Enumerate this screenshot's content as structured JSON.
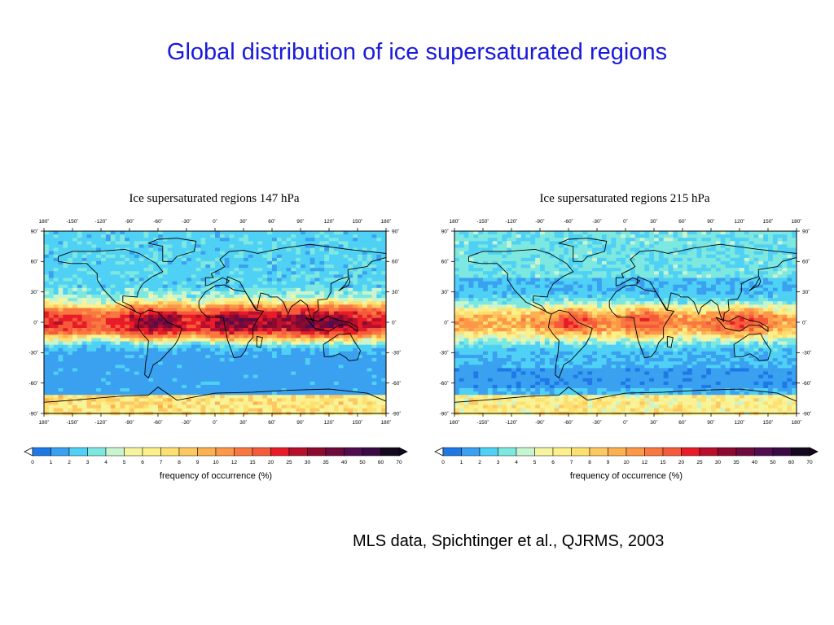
{
  "slide_title": "Global distribution of ice supersaturated regions",
  "citation": "MLS data, Spichtinger et al., QJRMS, 2003",
  "lon_ticks": [
    "180˚",
    "-150˚",
    "-120˚",
    "-90˚",
    "-60˚",
    "-30˚",
    "0˚",
    "30˚",
    "60˚",
    "90˚",
    "120˚",
    "150˚",
    "180˚"
  ],
  "lat_ticks": [
    "90˚",
    "60˚",
    "30˚",
    "0˚",
    "-30˚",
    "-60˚",
    "-90˚"
  ],
  "colorbar": {
    "label": "frequency of occurrence (%)",
    "tick_labels": [
      "0",
      "1",
      "2",
      "3",
      "4",
      "5",
      "6",
      "7",
      "8",
      "9",
      "10",
      "12",
      "15",
      "20",
      "25",
      "30",
      "35",
      "40",
      "50",
      "60",
      "70"
    ],
    "colors": [
      "#1e78e6",
      "#3aa0f0",
      "#4fd0f5",
      "#7de8e0",
      "#c8f5d0",
      "#f5f5a0",
      "#fdf08a",
      "#fde070",
      "#fdc860",
      "#fdb050",
      "#fc9848",
      "#f97840",
      "#f55a3a",
      "#e81c28",
      "#b8102c",
      "#8c0a30",
      "#6e0a3e",
      "#520c50",
      "#3a0a44",
      "#14081e"
    ]
  },
  "panels": [
    {
      "title": "Ice supersaturated regions 147 hPa",
      "pressure_hPa": 147
    },
    {
      "title": "Ice supersaturated regions 215 hPa",
      "pressure_hPa": 215
    }
  ]
}
